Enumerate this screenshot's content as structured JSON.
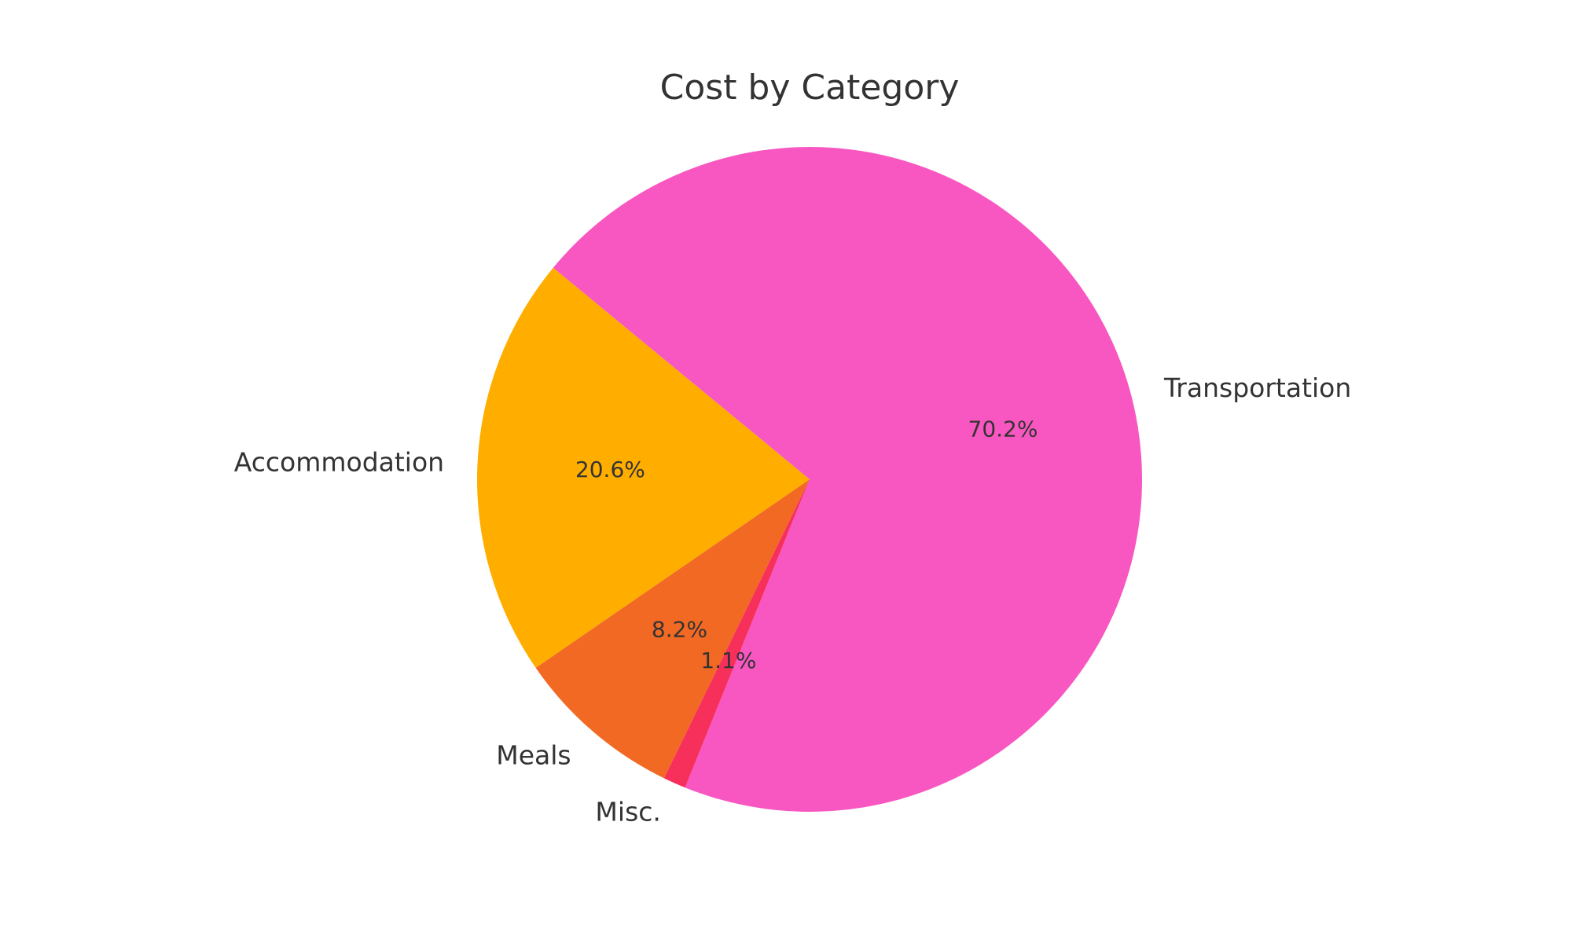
{
  "chart_data": {
    "type": "pie",
    "title": "Cost by Category",
    "categories": [
      "Transportation",
      "Accommodation",
      "Meals",
      "Misc."
    ],
    "values": [
      70.2,
      20.6,
      8.2,
      1.1
    ],
    "percent_labels": [
      "70.2%",
      "20.6%",
      "8.2%",
      "1.1%"
    ],
    "colors": [
      "#F857C1",
      "#FFAE00",
      "#F26923",
      "#F72F5B"
    ],
    "text_color": "#333333",
    "legend": "none"
  }
}
